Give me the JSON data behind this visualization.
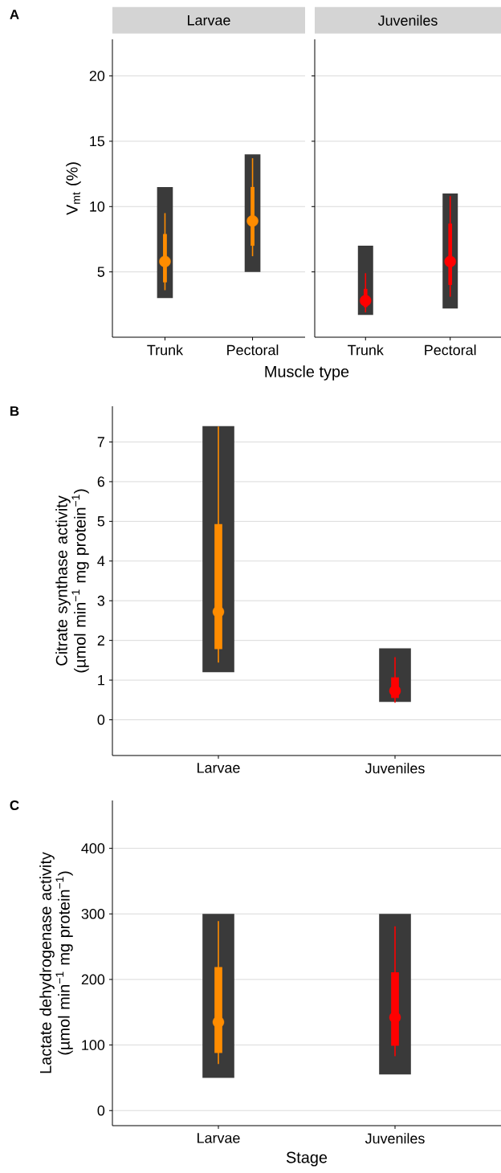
{
  "chart_data": [
    {
      "type": "box",
      "annotations": [
        "A"
      ],
      "title": "Larvae",
      "ylabel": "V$_{mt}$ (%)",
      "xlabel": "Muscle type",
      "categories": [
        "Trunk",
        "Pectoral"
      ],
      "ylim": [
        0,
        22.8
      ],
      "yticks": [
        5,
        10,
        15,
        20
      ],
      "grid": "y",
      "series": [
        {
          "type": "bar",
          "color": "#3a3a3a",
          "base": [
            3,
            5
          ],
          "values": [
            8.5,
            9
          ]
        },
        {
          "colors": [
            "#ff8c00",
            "#ff8c00"
          ],
          "boxes": [
            {
              "low": 3.6,
              "q1": 4.2,
              "median": 5.8,
              "q3": 7.9,
              "high": 9.5
            },
            {
              "low": 6.2,
              "q1": 7.0,
              "median": 8.9,
              "q3": 11.5,
              "high": 13.7
            }
          ]
        }
      ]
    },
    {
      "type": "box",
      "title": "Juveniles",
      "categories": [
        "Trunk",
        "Pectoral"
      ],
      "ylim": [
        0,
        22.8
      ],
      "yticks": [
        5,
        10,
        15,
        20
      ],
      "grid": "y",
      "tick_labels": "x",
      "series": [
        {
          "type": "bar",
          "color": "#3a3a3a",
          "base": [
            1.7,
            2.2
          ],
          "values": [
            5.3,
            8.8
          ]
        },
        {
          "colors": [
            "#ff0000",
            "#ff0000"
          ],
          "boxes": [
            {
              "low": 1.9,
              "q1": 2.3,
              "median": 2.8,
              "q3": 3.7,
              "high": 4.9
            },
            {
              "low": 3.1,
              "q1": 4.0,
              "median": 5.8,
              "q3": 8.7,
              "high": 10.8
            }
          ]
        }
      ]
    },
    {
      "type": "box",
      "annotations": [
        "B"
      ],
      "ylabel": "Citrate synthase activity (µmol min$^{−1}$ mg protein$^{−1}$)",
      "categories": [
        "Larvae",
        "Juveniles"
      ],
      "ylim": [
        -0.9,
        7.9
      ],
      "yticks": [
        0,
        1,
        2,
        3,
        4,
        5,
        6,
        7
      ],
      "grid": "y",
      "series": [
        {
          "type": "bar",
          "color": "#3a3a3a",
          "base": [
            1.2,
            0.45
          ],
          "values": [
            6.2,
            1.35
          ]
        },
        {
          "colors": [
            "#ff8c00",
            "#ff0000"
          ],
          "boxes": [
            {
              "low": 1.44,
              "q1": 1.78,
              "median": 2.72,
              "q3": 4.93,
              "high": 7.39
            },
            {
              "low": 0.43,
              "q1": 0.55,
              "median": 0.73,
              "q3": 1.07,
              "high": 1.58
            }
          ]
        }
      ]
    },
    {
      "type": "box",
      "annotations": [
        "C"
      ],
      "ylabel": "Lactate dehydrogenase activity (µmol min$^{−1}$ mg protein$^{−1}$)",
      "xlabel": "Stage",
      "categories": [
        "Larvae",
        "Juveniles"
      ],
      "ylim": [
        -23,
        473
      ],
      "yticks": [
        0,
        100,
        200,
        300,
        400
      ],
      "grid": "y",
      "series": [
        {
          "type": "bar",
          "color": "#3a3a3a",
          "base": [
            50,
            55
          ],
          "values": [
            250,
            245
          ]
        },
        {
          "colors": [
            "#ff8c00",
            "#ff0000"
          ],
          "boxes": [
            {
              "low": 71,
              "q1": 88,
              "median": 135,
              "q3": 219,
              "high": 289
            },
            {
              "low": 83,
              "q1": 99,
              "median": 142,
              "q3": 211,
              "high": 281
            }
          ]
        }
      ]
    }
  ]
}
